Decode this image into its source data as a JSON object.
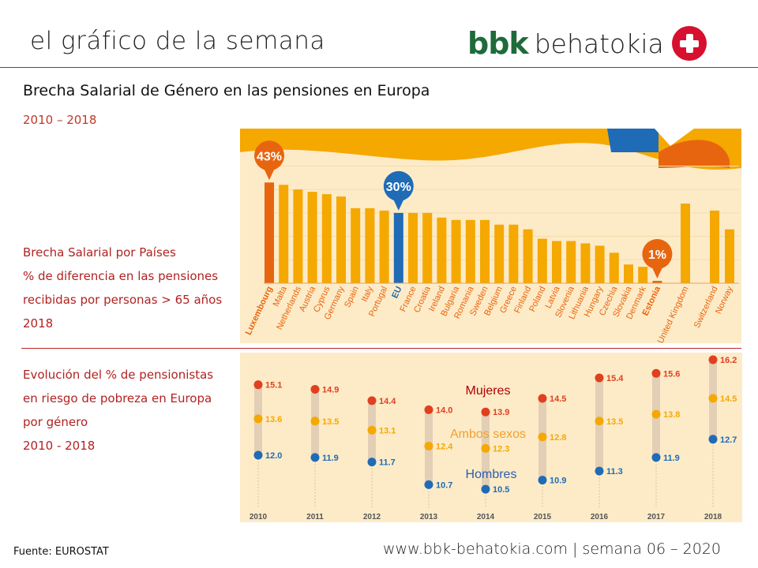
{
  "header": {
    "title": "el gráfico de la semana",
    "logo_text": "bbk behatokia",
    "logo_bbk": "bbk",
    "logo_rest": "behatokia"
  },
  "title": "Brecha Salarial de Género en las pensiones en Europa",
  "period": "2010 – 2018",
  "section1_lines": [
    "Brecha Salarial por Países",
    "% de diferencia en las pensiones",
    "recibidas por personas > 65 años",
    "2018"
  ],
  "section2_lines": [
    "Evolución del % de pensionistas",
    "en riesgo de pobreza en Europa",
    "por género",
    "2010 - 2018"
  ],
  "footer": {
    "source": "Fuente:  EUROSTAT",
    "right": "www.bbk-behatokia.com | semana 06 – 2020"
  },
  "colors": {
    "orange": "#f5a800",
    "dark_orange": "#e8650f",
    "blue": "#1f6bb5",
    "red": "#e0401f",
    "background": "#fdebc8",
    "accent_red": "#b22222"
  },
  "chart_data": [
    {
      "type": "bar",
      "unit": "%",
      "categories": [
        "Luxembourg",
        "Malta",
        "Netherlands",
        "Austria",
        "Cyprus",
        "Germany",
        "Spain",
        "Italy",
        "Portugal",
        "EU",
        "France",
        "Croatia",
        "Ireland",
        "Bulgaria",
        "Romania",
        "Sweden",
        "Belgium",
        "Greece",
        "Finland",
        "Poland",
        "Latvia",
        "Slovenia",
        "Lithuania",
        "Hungary",
        "Czechia",
        "Slovakia",
        "Denmark",
        "Estonia",
        "United Kingdom",
        "Switzerland",
        "Norway"
      ],
      "values": [
        43,
        42,
        40,
        39,
        38,
        37,
        32,
        32,
        31,
        30,
        30,
        30,
        28,
        27,
        27,
        27,
        25,
        25,
        23,
        19,
        18,
        18,
        17,
        16,
        13,
        8,
        7,
        1,
        34,
        31,
        23
      ],
      "callouts": [
        {
          "category": "Luxembourg",
          "label": "43%"
        },
        {
          "category": "EU",
          "label": "30%"
        },
        {
          "category": "Estonia",
          "label": "1%"
        }
      ],
      "highlight": {
        "Luxembourg": "#e8650f",
        "EU": "#1f6bb5",
        "Estonia": "#e8650f"
      },
      "ylim": [
        0,
        50
      ],
      "grid": true
    },
    {
      "type": "dot-range",
      "categories": [
        "2010",
        "2011",
        "2012",
        "2013",
        "2014",
        "2015",
        "2016",
        "2017",
        "2018"
      ],
      "series": [
        {
          "name": "Mujeres",
          "color": "#e0401f",
          "label_color": "#b00000",
          "values": [
            15.1,
            14.9,
            14.4,
            14.0,
            13.9,
            14.5,
            15.4,
            15.6,
            16.2
          ]
        },
        {
          "name": "Ambos sexos",
          "color": "#f5a800",
          "label_color": "#f0a030",
          "values": [
            13.6,
            13.5,
            13.1,
            12.4,
            12.3,
            12.8,
            13.5,
            13.8,
            14.5
          ]
        },
        {
          "name": "Hombres",
          "color": "#1f6bb5",
          "label_color": "#2a5db0",
          "values": [
            12.0,
            11.9,
            11.7,
            10.7,
            10.5,
            10.9,
            11.3,
            11.9,
            12.7
          ]
        }
      ]
    }
  ]
}
